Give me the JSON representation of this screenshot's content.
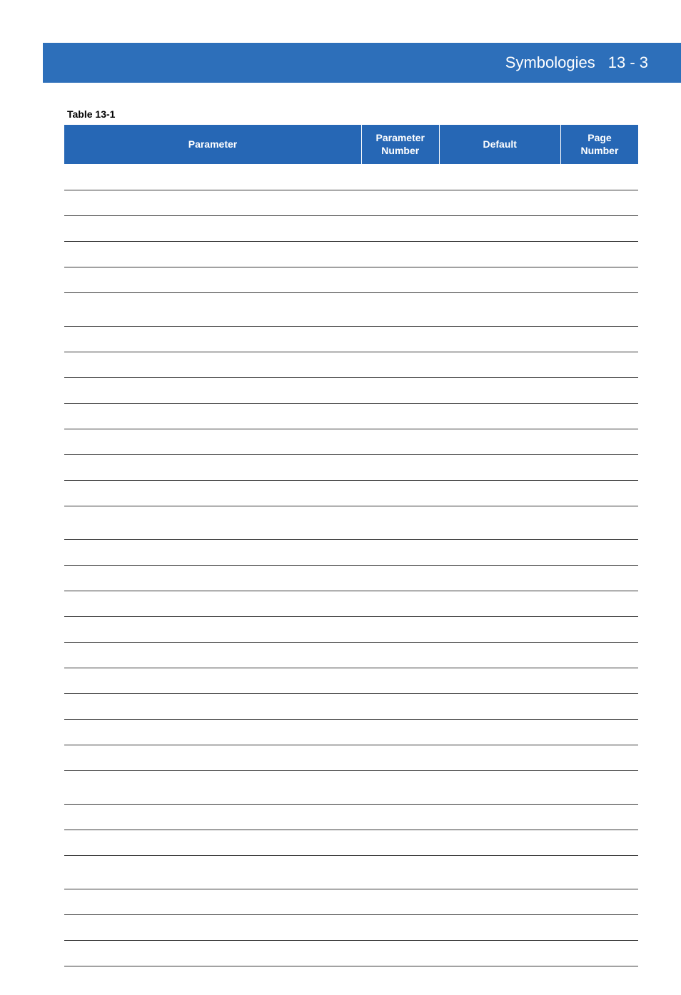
{
  "header": {
    "title": "Symbologies",
    "page_label": "13 - 3",
    "band_color": "#2d6fba",
    "text_color": "#ffffff"
  },
  "table": {
    "caption": "Table 13-1",
    "header_bg": "#2667b5",
    "header_fg": "#ffffff",
    "row_border": "#333333",
    "columns": [
      {
        "label": "Parameter",
        "width_pct": 51.8
      },
      {
        "label": "Parameter\nNumber",
        "width_pct": 13.5
      },
      {
        "label": "Default",
        "width_pct": 21.2
      },
      {
        "label": "Page\nNumber",
        "width_pct": 13.5
      }
    ],
    "rows": [
      {
        "type": "data",
        "cells": [
          "",
          "",
          "",
          ""
        ]
      },
      {
        "type": "data",
        "cells": [
          "",
          "",
          "",
          ""
        ]
      },
      {
        "type": "data",
        "cells": [
          "",
          "",
          "",
          ""
        ]
      },
      {
        "type": "data",
        "cells": [
          "",
          "",
          "",
          ""
        ]
      },
      {
        "type": "data",
        "cells": [
          "",
          "",
          "",
          ""
        ]
      },
      {
        "type": "section",
        "label": ""
      },
      {
        "type": "data",
        "cells": [
          "",
          "",
          "",
          ""
        ]
      },
      {
        "type": "data",
        "cells": [
          "",
          "",
          "",
          ""
        ]
      },
      {
        "type": "data",
        "cells": [
          "",
          "",
          "",
          ""
        ]
      },
      {
        "type": "data",
        "cells": [
          "",
          "",
          "",
          ""
        ]
      },
      {
        "type": "data",
        "cells": [
          "",
          "",
          "",
          ""
        ]
      },
      {
        "type": "data",
        "cells": [
          "",
          "",
          "",
          ""
        ]
      },
      {
        "type": "data",
        "cells": [
          "",
          "",
          "",
          ""
        ]
      },
      {
        "type": "section",
        "label": ""
      },
      {
        "type": "data",
        "cells": [
          "",
          "",
          "",
          ""
        ]
      },
      {
        "type": "data",
        "cells": [
          "",
          "",
          "",
          ""
        ]
      },
      {
        "type": "data",
        "cells": [
          "",
          "",
          "",
          ""
        ]
      },
      {
        "type": "data",
        "cells": [
          "",
          "",
          "",
          ""
        ]
      },
      {
        "type": "data",
        "cells": [
          "",
          "",
          "",
          ""
        ]
      },
      {
        "type": "data",
        "cells": [
          "",
          "",
          "",
          ""
        ]
      },
      {
        "type": "data",
        "cells": [
          "",
          "",
          "",
          ""
        ]
      },
      {
        "type": "data",
        "cells": [
          "",
          "",
          "",
          ""
        ]
      },
      {
        "type": "data",
        "cells": [
          "",
          "",
          "",
          ""
        ]
      },
      {
        "type": "section",
        "label": ""
      },
      {
        "type": "data",
        "cells": [
          "",
          "",
          "",
          ""
        ]
      },
      {
        "type": "data",
        "cells": [
          "",
          "",
          "",
          ""
        ]
      },
      {
        "type": "section",
        "label": ""
      },
      {
        "type": "data",
        "cells": [
          "",
          "",
          "",
          ""
        ]
      },
      {
        "type": "data",
        "cells": [
          "",
          "",
          "",
          ""
        ]
      },
      {
        "type": "data",
        "cells": [
          "",
          "",
          "",
          ""
        ]
      }
    ]
  }
}
